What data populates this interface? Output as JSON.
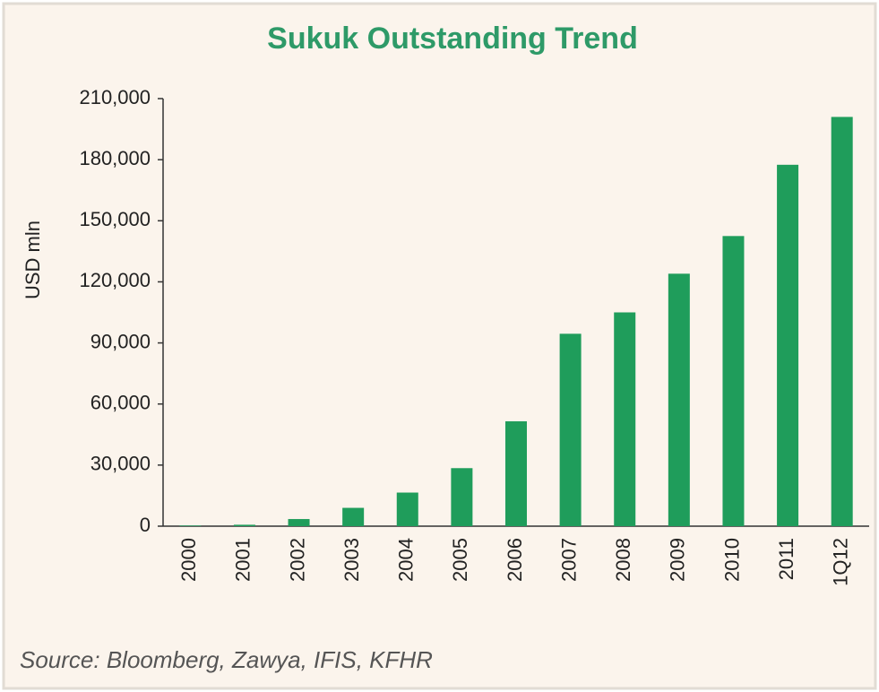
{
  "chart_data": {
    "type": "bar",
    "title": "Sukuk Outstanding Trend",
    "y_label": "USD mln",
    "source": "Source: Bloomberg, Zawya, IFIS, KFHR",
    "categories": [
      "2000",
      "2001",
      "2002",
      "2003",
      "2004",
      "2005",
      "2006",
      "2007",
      "2008",
      "2009",
      "2010",
      "2011",
      "1Q12"
    ],
    "values": [
      300,
      700,
      3500,
      9000,
      16500,
      28500,
      51500,
      94500,
      105000,
      124000,
      142500,
      177500,
      201000
    ],
    "color": "#1f9d5b",
    "ylim": [
      0,
      210000
    ],
    "yticks": [
      0,
      {
        "value": 30000,
        "label": "30,000"
      },
      {
        "value": 60000,
        "label": "60,000"
      },
      {
        "value": 90000,
        "label": "90,000"
      },
      {
        "value": 120000,
        "label": "120,000"
      },
      {
        "value": 150000,
        "label": "150,000"
      },
      {
        "value": 180000,
        "label": "180,000"
      },
      {
        "value": 210000,
        "label": "210,000"
      }
    ],
    "grid": false
  }
}
